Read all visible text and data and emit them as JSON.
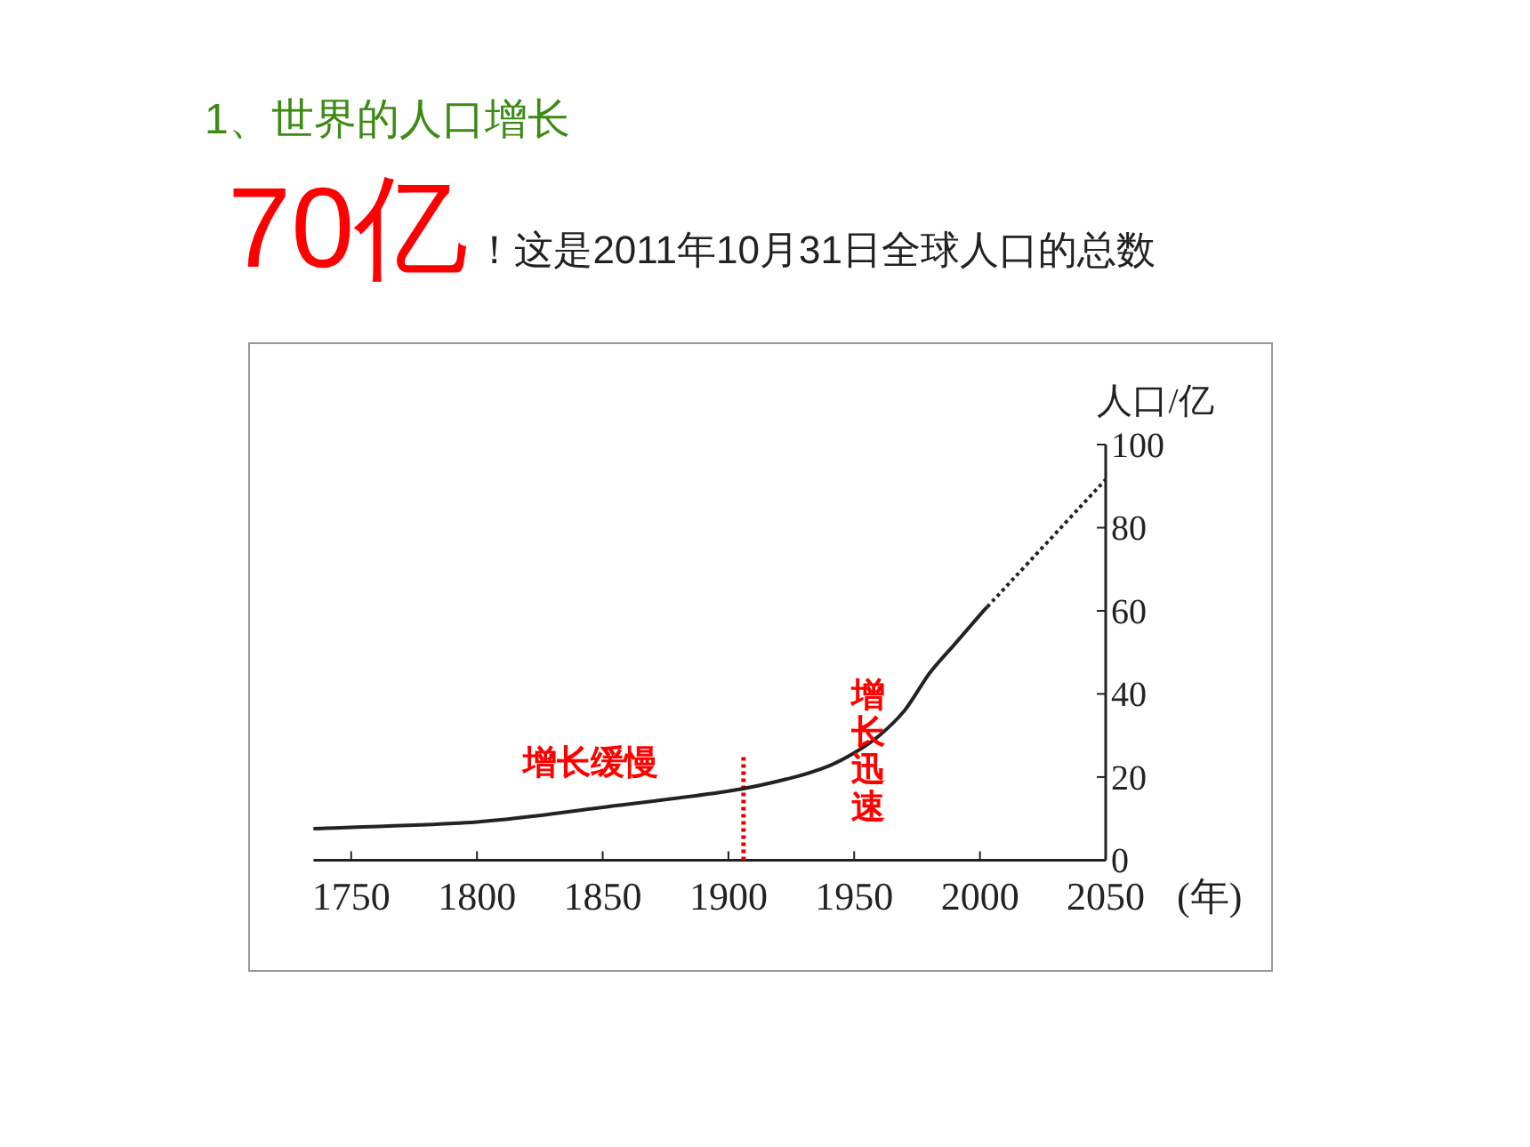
{
  "chart_data": {
    "type": "line",
    "title": "1、世界的人口增长",
    "subtitle": "70亿",
    "xlabel": "(年)",
    "ylabel": "人口/亿",
    "annotations": [
      "！这是2011年10月31日全球人口的总数",
      "增长缓慢",
      "增长迅速"
    ],
    "series": [
      {
        "color": "#222222",
        "line_style": "solid",
        "x": [
          1735,
          1800,
          1850,
          1900,
          1925,
          1940,
          1950,
          1960,
          1970,
          1980,
          1990,
          2000,
          2003
        ],
        "values": [
          7.6,
          9.2,
          12.7,
          16.6,
          19.8,
          22.7,
          25.8,
          30,
          36,
          45,
          52,
          59,
          61
        ]
      },
      {
        "color": "#222222",
        "line_style": "dotted",
        "x": [
          2003,
          2050
        ],
        "values": [
          61,
          91.6
        ]
      }
    ],
    "xlim": [
      1735,
      2050
    ],
    "xticks": [
      1750,
      1800,
      1850,
      1900,
      1950,
      2000,
      2050
    ],
    "ylim": [
      0,
      100
    ],
    "yticks": [
      0,
      20,
      40,
      60,
      80,
      100
    ],
    "ref_lines": [
      {
        "axis": "x",
        "value": 1906,
        "color": "#e00000",
        "line_style": "dotted"
      }
    ],
    "grid": false,
    "marker": "none"
  }
}
